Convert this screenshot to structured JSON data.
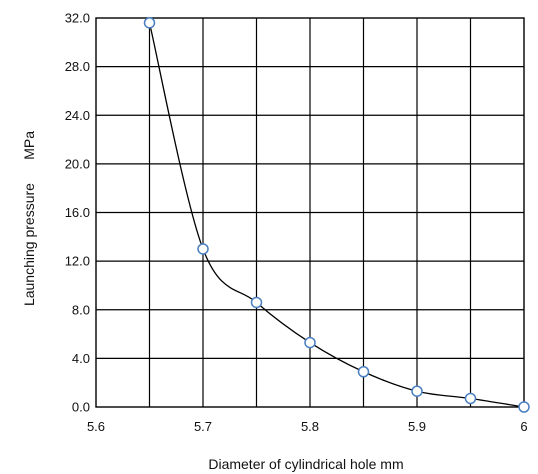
{
  "chart_data": {
    "type": "scatter",
    "xlabel": "Diameter of cylindrical hole      mm",
    "ylabel": "Launching pressure      MPa",
    "xlim": [
      5.6,
      6.0
    ],
    "ylim": [
      0.0,
      32.0
    ],
    "x_ticks": [
      "5.6",
      "5.7",
      "5.8",
      "5.9",
      "6"
    ],
    "x_tick_values": [
      5.6,
      5.7,
      5.8,
      5.9,
      6.0
    ],
    "y_ticks": [
      "0.0",
      "4.0",
      "8.0",
      "12.0",
      "16.0",
      "20.0",
      "24.0",
      "28.0",
      "32.0"
    ],
    "y_tick_values": [
      0,
      4,
      8,
      12,
      16,
      20,
      24,
      28,
      32
    ],
    "x_grid_step": 0.05,
    "grid": true,
    "smoothed_line": true,
    "series": [
      {
        "x": [
          5.65,
          5.7,
          5.75,
          5.8,
          5.85,
          5.9,
          5.95,
          6.0
        ],
        "y": [
          31.6,
          13.0,
          8.6,
          5.3,
          2.9,
          1.3,
          0.7,
          0.0
        ],
        "marker": "open-circle",
        "marker_color": "#4a7fc1",
        "line_color": "#000000"
      }
    ]
  }
}
